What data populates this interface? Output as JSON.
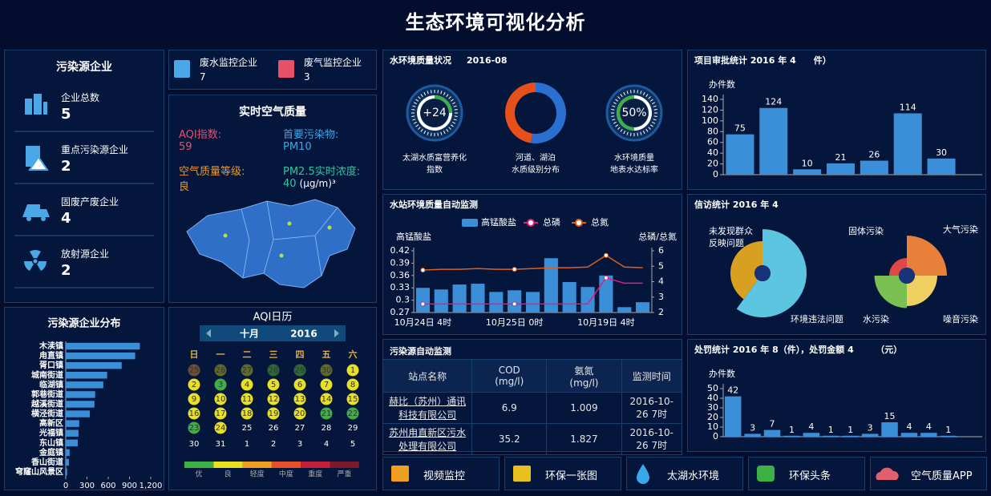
{
  "title": "生态环境可视化分析",
  "enterprises": {
    "title": "污染源企业",
    "items": [
      {
        "label": "企业总数",
        "value": 5
      },
      {
        "label": "重点污染源企业",
        "value": 2
      },
      {
        "label": "固废产废企业",
        "value": 4
      },
      {
        "label": "放射源企业",
        "value": 2
      }
    ]
  },
  "monitoring": [
    {
      "label": "废水监控企业",
      "value": 7
    },
    {
      "label": "废气监控企业",
      "value": 3
    }
  ],
  "air_quality": {
    "title": "实时空气质量",
    "fields": [
      {
        "label": "AQI指数:",
        "value": 59,
        "color": "#e8506a"
      },
      {
        "label": "首要污染物:",
        "value": "PM10",
        "color": "#3aa8e8"
      },
      {
        "label": "空气质量等级:",
        "value": "良",
        "color": "#e89a30"
      },
      {
        "label": "PM2.5实时浓度:",
        "value": 40,
        "unit": "(μg/m)³",
        "color": "#30c8a0"
      }
    ]
  },
  "aqi_calendar": {
    "title": "AQI日历",
    "month": "十月",
    "year": "2016",
    "weekdays": [
      "日",
      "一",
      "二",
      "三",
      "四",
      "五",
      "六"
    ],
    "days": [
      {
        "day": 25,
        "color": "#6b4f2e"
      },
      {
        "day": 26,
        "color": "#5e6a2a"
      },
      {
        "day": 27,
        "color": "#5e6a2a"
      },
      {
        "day": 28,
        "color": "#2a6a34"
      },
      {
        "day": 29,
        "color": "#2a6a34"
      },
      {
        "day": 30,
        "color": "#5e6a2a"
      },
      {
        "day": 1,
        "color": "#e8e020"
      },
      {
        "day": 2,
        "color": "#e8e020"
      },
      {
        "day": 3,
        "color": "#3cb043"
      },
      {
        "day": 4,
        "color": "#e8e020"
      },
      {
        "day": 5,
        "color": "#e8e020"
      },
      {
        "day": 6,
        "color": "#e8e020"
      },
      {
        "day": 7,
        "color": "#e8e020"
      },
      {
        "day": 8,
        "color": "#e8e020"
      },
      {
        "day": 9,
        "color": "#e8e020"
      },
      {
        "day": 10,
        "color": "#e8e020"
      },
      {
        "day": 11,
        "color": "#e8e020"
      },
      {
        "day": 12,
        "color": "#e8e020"
      },
      {
        "day": 13,
        "color": "#e8e020"
      },
      {
        "day": 14,
        "color": "#e8e020"
      },
      {
        "day": 15,
        "color": "#e8e020"
      },
      {
        "day": 16,
        "color": "#e8e020"
      },
      {
        "day": 17,
        "color": "#e8e020"
      },
      {
        "day": 18,
        "color": "#e8e020"
      },
      {
        "day": 19,
        "color": "#e8e020"
      },
      {
        "day": 20,
        "color": "#e8e020"
      },
      {
        "day": 21,
        "color": "#3cb043"
      },
      {
        "day": 22,
        "color": "#3cb043"
      },
      {
        "day": 23,
        "color": "#3cb043"
      },
      {
        "day": 24,
        "color": "#e8e020"
      },
      {
        "day": 25,
        "color": null
      },
      {
        "day": 26,
        "color": null
      },
      {
        "day": 27,
        "color": null
      },
      {
        "day": 28,
        "color": null
      },
      {
        "day": 29,
        "color": null
      },
      {
        "day": 30,
        "color": null
      },
      {
        "day": 31,
        "color": null
      },
      {
        "day": 1,
        "color": null
      },
      {
        "day": 2,
        "color": null
      },
      {
        "day": 3,
        "color": null
      },
      {
        "day": 4,
        "color": null
      },
      {
        "day": 5,
        "color": null
      }
    ],
    "legend": [
      {
        "label": "优",
        "color": "#3cb043"
      },
      {
        "label": "良",
        "color": "#e8e020"
      },
      {
        "label": "轻度",
        "color": "#f0a020"
      },
      {
        "label": "中度",
        "color": "#e8502a"
      },
      {
        "label": "重度",
        "color": "#c0203a"
      },
      {
        "label": "严重",
        "color": "#7a1a2a"
      }
    ]
  },
  "water_quality": {
    "title": "水环境质量状况",
    "date": "2016-08",
    "gauges": [
      {
        "value": "+24",
        "label": [
          "太湖水质富营养化",
          "指数"
        ]
      },
      {
        "label": [
          "河道、湖泊",
          "水质级别分布"
        ]
      },
      {
        "value": "50%",
        "label": [
          "水环境质量",
          "地表水达标率"
        ]
      }
    ]
  },
  "pollution_monitoring": {
    "title": "污染源自动监测",
    "headers": [
      "站点名称",
      "COD\n(mg/l)",
      "氨氮\n(mg/l)",
      "监测时间"
    ],
    "rows": [
      [
        "赫比（苏州）通讯科技有限公司",
        6.9,
        1.009,
        "2016-10-26 7时"
      ],
      [
        "苏州甪直新区污水处理有限公司",
        35.2,
        1.827,
        "2016-10-26 7时"
      ]
    ]
  },
  "links": [
    "视频监控",
    "环保一张图",
    "太湖水环境",
    "环保头条",
    "空气质量APP"
  ],
  "chart_data": [
    {
      "type": "hbar",
      "title": "污染源企业分布",
      "categories": [
        "木渎镇",
        "甪直镇",
        "胥口镇",
        "城南街道",
        "临湖镇",
        "郭巷街道",
        "越溪街道",
        "横泾街道",
        "高新区",
        "光福镇",
        "东山镇",
        "金庭镇",
        "香山街道",
        "穹窿山风景区"
      ],
      "values": [
        1045,
        980,
        790,
        585,
        530,
        415,
        405,
        340,
        190,
        180,
        170,
        55,
        45,
        20
      ],
      "color": "#3a8fd8",
      "xlim": [
        0,
        1200
      ],
      "xticks": [
        0,
        300,
        600,
        900,
        {
          "value": 1200,
          "label": "1,200"
        }
      ]
    },
    {
      "type": "combo",
      "title": "水站环境质量自动监测",
      "categories": [
        "10月24日 4时",
        null,
        null,
        null,
        null,
        "10月25日 0时",
        null,
        null,
        null,
        null,
        "10月19日 4时",
        null,
        null
      ],
      "y_label": "高锰酸盐",
      "y2_label": "总磷/总氮",
      "ylim": [
        0.27,
        0.42
      ],
      "yticks": [
        0.27,
        0.3,
        0.33,
        0.36,
        0.39,
        0.42
      ],
      "y2lim": [
        2,
        6
      ],
      "y2ticks": [
        2,
        3,
        4,
        5,
        6
      ],
      "series": [
        {
          "name": "高锰酸盐",
          "type": "bar",
          "color": "#3a8fd8",
          "values": [
            0.33,
            0.326,
            0.338,
            0.34,
            0.32,
            0.324,
            0.32,
            0.402,
            0.344,
            0.332,
            0.36,
            0.283,
            0.295
          ]
        },
        {
          "name": "总磷",
          "type": "line",
          "axis": "y2",
          "color": "#e0207a",
          "values": [
            2.55,
            2.55,
            2.55,
            2.55,
            2.55,
            2.55,
            2.55,
            2.55,
            2.55,
            2.55,
            4.25,
            3.9,
            3.9
          ]
        },
        {
          "name": "总氮",
          "type": "line",
          "axis": "y2",
          "color": "#e0601a",
          "values": [
            4.75,
            4.8,
            4.8,
            4.85,
            4.8,
            4.8,
            4.85,
            4.9,
            4.9,
            4.95,
            5.7,
            4.95,
            4.9
          ]
        }
      ]
    },
    {
      "type": "bar",
      "title": "项目审批统计  2016 年 4　　件）",
      "y_label": "办件数",
      "values": [
        75,
        124,
        10,
        21,
        26,
        114,
        30
      ],
      "color": "#3a8fd8",
      "ylim": [
        0,
        140
      ],
      "yticks": [
        0,
        20,
        40,
        60,
        80,
        100,
        120,
        140
      ],
      "data_labels": true
    },
    {
      "type": "pie",
      "title": "信访统计  2016 年 4",
      "rose": true,
      "pies": [
        {
          "rose_type": "radius",
          "categories": [
            "环境违法问题",
            "未发现群众反映问题"
          ],
          "values": [
            60,
            40
          ],
          "colors": [
            "#5cc5e0",
            "#d8a020"
          ]
        },
        {
          "rose_type": "area",
          "categories": [
            "大气污染",
            "噪音污染",
            "水污染",
            "固体污染"
          ],
          "values": [
            50,
            35,
            38,
            15
          ],
          "colors": [
            "#e8803a",
            "#f0d060",
            "#7ac050",
            "#e04848"
          ]
        }
      ]
    },
    {
      "type": "bar",
      "title": "处罚统计  2016 年 8（件），处罚金额 4　　　（元）",
      "y_label": "办件数",
      "values": [
        42,
        3,
        7,
        1,
        4,
        1,
        1,
        3,
        15,
        4,
        4,
        1
      ],
      "color": "#3a8fd8",
      "ylim": [
        0,
        50
      ],
      "yticks": [
        0,
        10,
        20,
        30,
        40,
        50
      ],
      "data_labels": true
    }
  ]
}
